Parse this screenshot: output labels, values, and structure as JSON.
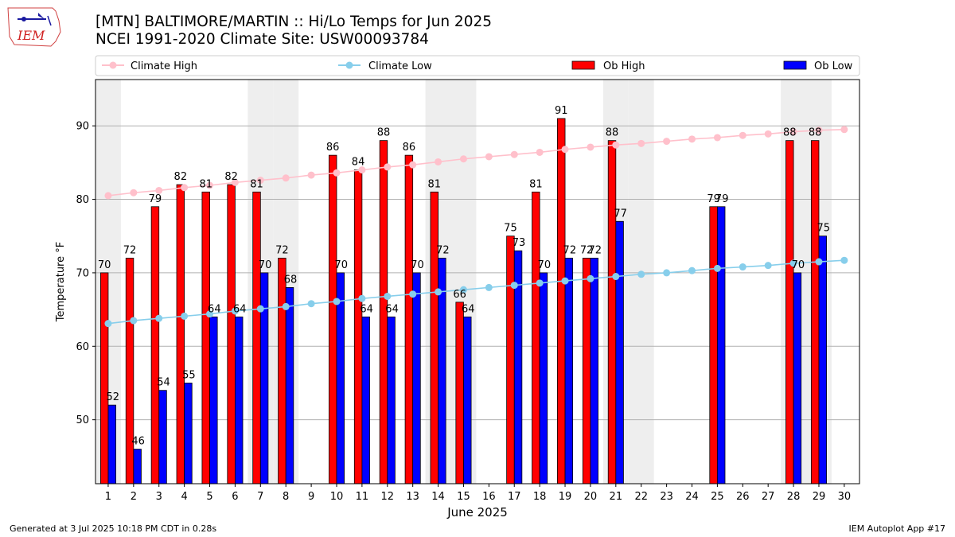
{
  "header": {
    "logo_text": "IEM",
    "title_line1": "[MTN] BALTIMORE/MARTIN :: Hi/Lo Temps for Jun 2025",
    "title_line2": "NCEI 1991-2020 Climate Site: USW00093784"
  },
  "footer": {
    "generated": "Generated at 3 Jul 2025 10:18 PM CDT in 0.28s",
    "app": "IEM Autoplot App #17"
  },
  "colors": {
    "ob_high": "#ff0000",
    "ob_low": "#0000ff",
    "climate_high": "#ffc0cb",
    "climate_low": "#87ceeb",
    "weekend_shade": "#eeeeee",
    "grid": "#b0b0b0"
  },
  "chart_data": {
    "type": "bar",
    "xlabel": "June 2025",
    "ylabel": "Temperature °F",
    "ylim": [
      41.3,
      96.3
    ],
    "yticks": [
      50,
      60,
      70,
      80,
      90
    ],
    "grid": "horizontal",
    "legend_placement": "top (above plot)",
    "days": [
      1,
      2,
      3,
      4,
      5,
      6,
      7,
      8,
      9,
      10,
      11,
      12,
      13,
      14,
      15,
      16,
      17,
      18,
      19,
      20,
      21,
      22,
      23,
      24,
      25,
      26,
      27,
      28,
      29,
      30
    ],
    "weekend_days": [
      1,
      7,
      8,
      14,
      15,
      21,
      22,
      28,
      29
    ],
    "series": [
      {
        "name": "Ob High",
        "kind": "bar",
        "values": [
          70,
          72,
          79,
          82,
          81,
          82,
          81,
          72,
          null,
          86,
          84,
          88,
          86,
          81,
          66,
          null,
          75,
          81,
          91,
          72,
          88,
          null,
          null,
          null,
          79,
          null,
          null,
          88,
          88,
          null
        ]
      },
      {
        "name": "Ob Low",
        "kind": "bar",
        "values": [
          52,
          46,
          54,
          55,
          64,
          64,
          70,
          68,
          null,
          70,
          64,
          64,
          70,
          72,
          64,
          null,
          73,
          70,
          72,
          72,
          77,
          null,
          null,
          null,
          79,
          null,
          null,
          70,
          75,
          null
        ]
      },
      {
        "name": "Climate High",
        "kind": "line",
        "values": [
          80.5,
          80.9,
          81.2,
          81.6,
          81.9,
          82.3,
          82.6,
          82.9,
          83.3,
          83.6,
          84.0,
          84.4,
          84.7,
          85.1,
          85.5,
          85.8,
          86.1,
          86.4,
          86.8,
          87.1,
          87.4,
          87.6,
          87.9,
          88.2,
          88.4,
          88.7,
          88.9,
          89.2,
          89.4,
          89.5
        ]
      },
      {
        "name": "Climate Low",
        "kind": "line",
        "values": [
          63.1,
          63.5,
          63.8,
          64.1,
          64.4,
          64.8,
          65.1,
          65.4,
          65.8,
          66.1,
          66.5,
          66.8,
          67.1,
          67.4,
          67.7,
          68.0,
          68.3,
          68.6,
          68.9,
          69.2,
          69.5,
          69.8,
          70.0,
          70.3,
          70.6,
          70.8,
          71.0,
          71.3,
          71.5,
          71.7
        ]
      }
    ]
  }
}
